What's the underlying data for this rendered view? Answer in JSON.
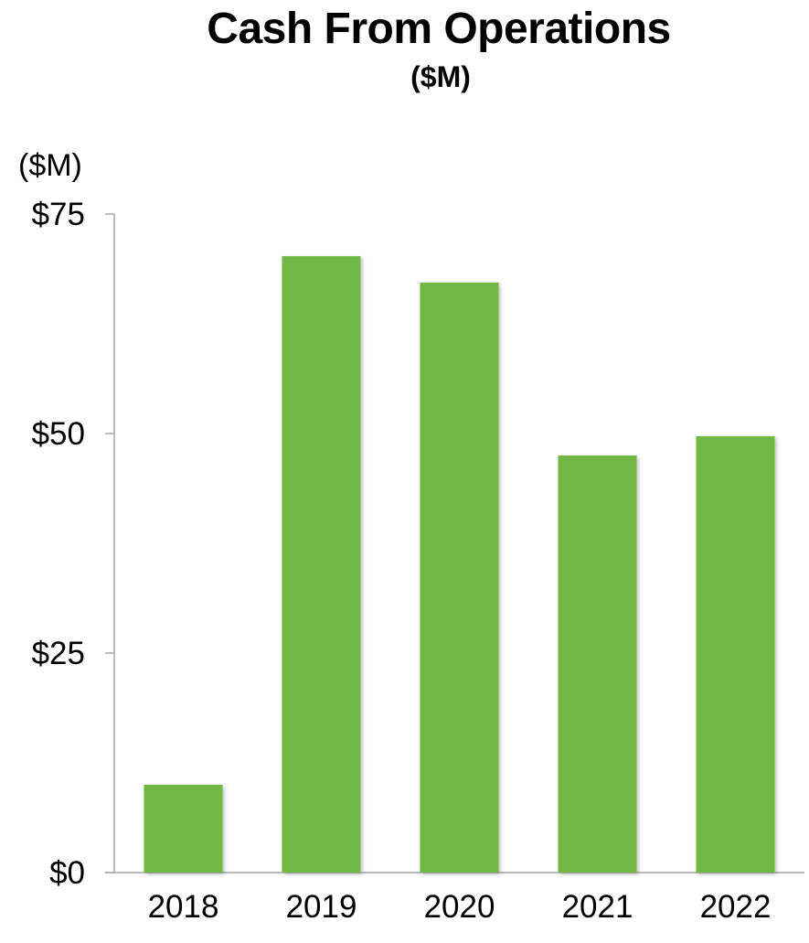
{
  "chart_data": {
    "type": "bar",
    "title": "Cash From Operations",
    "subtitle": "($M)",
    "ylabel": "($M)",
    "xlabel": "",
    "categories": [
      "2018",
      "2019",
      "2020",
      "2021",
      "2022"
    ],
    "values": [
      10,
      70.2,
      67.2,
      47.5,
      49.7
    ],
    "ylim": [
      0,
      75
    ],
    "yticks": [
      0,
      25,
      50,
      75
    ],
    "ytick_labels": [
      "$0",
      "$25",
      "$50",
      "$75"
    ],
    "grid": false,
    "legend": "none",
    "bar_color": "#72b844"
  }
}
